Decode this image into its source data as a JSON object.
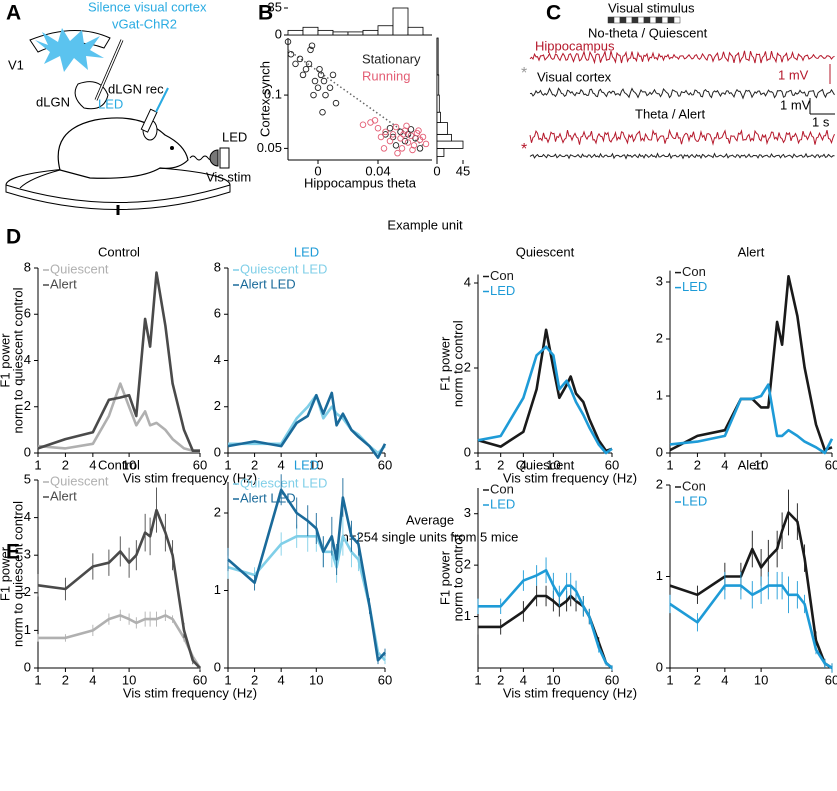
{
  "figure": {
    "panel_letters": [
      "A",
      "B",
      "C",
      "D",
      "E"
    ],
    "a": {
      "title1": "Silence visual cortex",
      "title2": "vGat-ChR2",
      "v1": "V1",
      "dlgn": "dLGN",
      "dlgn_rec": "dLGN rec.",
      "led_probe": "LED",
      "led": "LED",
      "vis_stim": "Vis stim"
    },
    "c": {
      "stimulus": "Visual stimulus",
      "state1": "No-theta / Quiescent",
      "hippocampus": "Hippocampus",
      "cortex": "Visual cortex",
      "scale_red": "1 mV",
      "scale_black": "1 mV",
      "scale_time": "1 s",
      "state2": "Theta / Alert",
      "star": "*"
    },
    "d_heading": "Example unit",
    "e_heading": "Average",
    "e_subheading": "n=254 single units from 5 mice"
  },
  "chart_data": [
    {
      "type": "scatter",
      "xlabel": "Hippocampus theta",
      "ylabel": "Cortex synch",
      "xlim": [
        -0.02,
        0.076
      ],
      "ylim": [
        0.043,
        0.21
      ],
      "log_y": true,
      "xticks": [
        0,
        0.04
      ],
      "yticks": [
        0.05,
        0.1
      ],
      "series": [
        {
          "name": "Stationary",
          "color": "#222222",
          "x": [
            -0.02,
            -0.018,
            -0.015,
            -0.012,
            -0.01,
            -0.008,
            -0.005,
            -0.004,
            -0.002,
            0,
            0.002,
            0.004,
            0.005,
            0.008,
            0.01,
            0.012,
            -0.006,
            -0.003,
            0.001,
            0.003,
            0.045,
            0.05,
            0.055,
            0.058,
            0.06,
            0.062,
            0.065,
            0.052,
            0.048,
            0.068
          ],
          "y": [
            0.2,
            0.17,
            0.15,
            0.16,
            0.13,
            0.14,
            0.18,
            0.19,
            0.12,
            0.11,
            0.13,
            0.12,
            0.1,
            0.11,
            0.13,
            0.09,
            0.15,
            0.1,
            0.14,
            0.08,
            0.06,
            0.058,
            0.062,
            0.055,
            0.06,
            0.064,
            0.057,
            0.052,
            0.065,
            0.05
          ]
        },
        {
          "name": "Running",
          "color": "#e35d74",
          "x": [
            0.03,
            0.035,
            0.04,
            0.042,
            0.045,
            0.048,
            0.05,
            0.052,
            0.055,
            0.056,
            0.058,
            0.06,
            0.062,
            0.064,
            0.066,
            0.068,
            0.07,
            0.072,
            0.038,
            0.044,
            0.053,
            0.059,
            0.063,
            0.067,
            0.057
          ],
          "y": [
            0.068,
            0.07,
            0.065,
            0.058,
            0.062,
            0.055,
            0.06,
            0.066,
            0.057,
            0.05,
            0.063,
            0.054,
            0.059,
            0.052,
            0.061,
            0.056,
            0.058,
            0.053,
            0.072,
            0.05,
            0.047,
            0.067,
            0.049,
            0.063,
            0.06
          ]
        }
      ],
      "fit_line": {
        "x": [
          -0.02,
          0.07
        ],
        "y": [
          0.18,
          0.052
        ]
      }
    },
    {
      "type": "histogram",
      "bins": [
        -0.02,
        -0.01,
        0,
        0.01,
        0.02,
        0.03,
        0.04,
        0.05,
        0.06,
        0.07
      ],
      "counts": [
        6,
        10,
        6,
        4,
        4,
        6,
        12,
        35,
        10
      ],
      "ylim": [
        0,
        35
      ],
      "yticks": [
        0,
        35
      ]
    },
    {
      "type": "histogram",
      "orientation": "horizontal",
      "bins": [
        0.045,
        0.05,
        0.055,
        0.06,
        0.07,
        0.08,
        0.1,
        0.13,
        0.21
      ],
      "counts": [
        12,
        45,
        25,
        18,
        6,
        4,
        3,
        2
      ],
      "xlim": [
        0,
        45
      ],
      "xticks": [
        0,
        45
      ]
    },
    {
      "type": "line",
      "title": "Control",
      "ylabel": [
        "F1 power",
        "norm to quiescent control"
      ],
      "xlabel": "Vis stim frequency (Hz)",
      "log_x": true,
      "x": [
        1,
        2,
        4,
        6,
        8,
        10,
        12,
        15,
        17,
        20,
        25,
        30,
        40,
        50,
        60
      ],
      "xlim": [
        1,
        60
      ],
      "xticks": [
        1,
        2,
        4,
        10,
        60
      ],
      "ylim": [
        0,
        8
      ],
      "yticks": [
        0,
        2,
        4,
        6,
        8
      ],
      "series": [
        {
          "name": "Quiescent",
          "color": "#b0b0b0",
          "values": [
            0.3,
            0.2,
            0.4,
            1.6,
            3.0,
            2.0,
            1.2,
            1.8,
            1.2,
            1.3,
            1.0,
            0.6,
            0.2,
            0.1,
            0.1
          ]
        },
        {
          "name": "Alert",
          "color": "#4a4a4a",
          "values": [
            0.2,
            0.6,
            0.9,
            2.3,
            2.4,
            2.5,
            1.6,
            5.8,
            4.6,
            7.8,
            5.5,
            3.0,
            1.0,
            0.1,
            0.1
          ]
        }
      ]
    },
    {
      "type": "line",
      "title": "LED",
      "title_color": "#1e9bd7",
      "log_x": true,
      "x": [
        1,
        2,
        4,
        6,
        8,
        10,
        12,
        15,
        17,
        20,
        25,
        30,
        40,
        50,
        60
      ],
      "xlim": [
        1,
        60
      ],
      "xticks": [
        1,
        2,
        4,
        10,
        60
      ],
      "ylim": [
        0,
        8
      ],
      "yticks": [
        0,
        2,
        4,
        6,
        8
      ],
      "series": [
        {
          "name": "Quiescent LED",
          "color": "#80cfe8",
          "values": [
            0.4,
            0.4,
            0.4,
            1.5,
            2.0,
            2.5,
            1.5,
            2.0,
            1.7,
            1.5,
            1.0,
            0.8,
            0.3,
            0.0,
            0.3
          ]
        },
        {
          "name": "Alert LED",
          "color": "#1a6a9a",
          "values": [
            0.3,
            0.5,
            0.3,
            1.3,
            1.6,
            2.5,
            1.7,
            2.6,
            1.2,
            1.7,
            1.0,
            0.7,
            0.3,
            -0.2,
            0.4
          ]
        }
      ]
    },
    {
      "type": "line",
      "title": "Quiescent",
      "ylabel": [
        "F1 power",
        "norm to control"
      ],
      "xlabel": "Vis stim frequency (Hz)",
      "log_x": true,
      "x": [
        1,
        2,
        4,
        6,
        8,
        10,
        12,
        15,
        17,
        20,
        25,
        30,
        40,
        50,
        60
      ],
      "xlim": [
        1,
        60
      ],
      "xticks": [
        1,
        2,
        4,
        10,
        60
      ],
      "ylim": [
        0,
        4.2
      ],
      "yticks": [
        0,
        2,
        4
      ],
      "series": [
        {
          "name": "Con",
          "color": "#1a1a1a",
          "values": [
            0.3,
            0.15,
            0.5,
            1.5,
            2.9,
            2.0,
            1.3,
            1.6,
            1.8,
            1.4,
            1.2,
            0.8,
            0.3,
            0.05,
            0.1
          ]
        },
        {
          "name": "LED",
          "color": "#1e9bd7",
          "values": [
            0.3,
            0.4,
            1.3,
            2.3,
            2.5,
            2.3,
            1.5,
            1.7,
            1.5,
            1.2,
            0.9,
            0.6,
            0.2,
            0.0,
            0.1
          ]
        }
      ]
    },
    {
      "type": "line",
      "title": "Alert",
      "log_x": true,
      "x": [
        1,
        2,
        4,
        6,
        8,
        10,
        12,
        15,
        17,
        20,
        25,
        30,
        40,
        50,
        60
      ],
      "xlim": [
        1,
        60
      ],
      "xticks": [
        1,
        2,
        4,
        10,
        60
      ],
      "ylim": [
        0,
        3.2
      ],
      "yticks": [
        0,
        1,
        2,
        3
      ],
      "series": [
        {
          "name": "Con",
          "color": "#1a1a1a",
          "values": [
            0.05,
            0.3,
            0.4,
            0.95,
            0.95,
            0.8,
            0.8,
            2.3,
            1.9,
            3.1,
            2.4,
            1.5,
            0.5,
            0.05,
            0.1
          ]
        },
        {
          "name": "LED",
          "color": "#1e9bd7",
          "values": [
            0.15,
            0.2,
            0.3,
            0.95,
            0.95,
            1.0,
            1.2,
            0.3,
            0.3,
            0.4,
            0.3,
            0.2,
            0.1,
            0.0,
            0.25
          ]
        }
      ]
    },
    {
      "type": "line",
      "title": "Control",
      "ylabel": [
        "F1 power",
        "norm to quiescent control"
      ],
      "xlabel": "Vis stim frequency (Hz)",
      "log_x": true,
      "x": [
        1,
        2,
        4,
        6,
        8,
        10,
        12,
        15,
        17,
        20,
        25,
        30,
        40,
        50,
        60
      ],
      "xlim": [
        1,
        60
      ],
      "xticks": [
        1,
        2,
        4,
        10,
        60
      ],
      "ylim": [
        0,
        5
      ],
      "yticks": [
        0,
        1,
        2,
        3,
        4,
        5
      ],
      "series": [
        {
          "name": "Quiescent",
          "color": "#b0b0b0",
          "values": [
            0.8,
            0.8,
            1.0,
            1.3,
            1.4,
            1.3,
            1.2,
            1.3,
            1.3,
            1.3,
            1.4,
            1.3,
            0.8,
            0.3,
            0.0
          ],
          "errors": [
            0.1,
            0.1,
            0.15,
            0.15,
            0.15,
            0.15,
            0.15,
            0.2,
            0.2,
            0.2,
            0.15,
            0.1,
            0.1,
            0.05,
            0.05
          ]
        },
        {
          "name": "Alert",
          "color": "#4a4a4a",
          "values": [
            2.2,
            2.1,
            2.7,
            2.8,
            3.1,
            2.8,
            3.0,
            3.6,
            3.5,
            4.2,
            3.6,
            3.0,
            1.0,
            0.2,
            0.0
          ],
          "errors": [
            0.3,
            0.3,
            0.35,
            0.35,
            0.4,
            0.4,
            0.4,
            0.5,
            0.5,
            0.6,
            0.5,
            0.4,
            0.2,
            0.1,
            0.05
          ]
        }
      ]
    },
    {
      "type": "line",
      "title": "LED",
      "title_color": "#1e9bd7",
      "log_x": true,
      "x": [
        1,
        2,
        4,
        6,
        8,
        10,
        12,
        15,
        17,
        20,
        25,
        30,
        40,
        50,
        60
      ],
      "xlim": [
        1,
        60
      ],
      "xticks": [
        1,
        2,
        4,
        10,
        60
      ],
      "ylim": [
        0,
        2.4
      ],
      "yticks": [
        0,
        1,
        2
      ],
      "series": [
        {
          "name": "Quiescent LED",
          "color": "#80cfe8",
          "values": [
            1.3,
            1.2,
            1.6,
            1.7,
            1.7,
            1.7,
            1.5,
            1.5,
            1.3,
            1.7,
            1.5,
            1.4,
            0.8,
            0.2,
            0.1
          ],
          "errors": [
            0.15,
            0.1,
            0.15,
            0.15,
            0.2,
            0.2,
            0.2,
            0.2,
            0.2,
            0.25,
            0.2,
            0.15,
            0.1,
            0.05,
            0.05
          ]
        },
        {
          "name": "Alert LED",
          "color": "#1a6a9a",
          "values": [
            1.4,
            1.1,
            2.3,
            2.0,
            1.9,
            1.8,
            1.5,
            1.7,
            1.4,
            2.2,
            1.7,
            1.6,
            0.8,
            0.1,
            0.2
          ],
          "errors": [
            0.15,
            0.1,
            0.2,
            0.2,
            0.2,
            0.2,
            0.2,
            0.25,
            0.2,
            0.25,
            0.2,
            0.15,
            0.1,
            0.05,
            0.05
          ]
        }
      ]
    },
    {
      "type": "line",
      "title": "Quiescent",
      "ylabel": [
        "F1 power",
        "norm to control"
      ],
      "xlabel": "Vis stim frequency (Hz)",
      "log_x": true,
      "x": [
        1,
        2,
        4,
        6,
        8,
        10,
        12,
        15,
        17,
        20,
        25,
        30,
        40,
        50,
        60
      ],
      "xlim": [
        1,
        60
      ],
      "xticks": [
        1,
        2,
        4,
        10,
        60
      ],
      "ylim": [
        0,
        3.5
      ],
      "yticks": [
        1,
        2,
        3
      ],
      "series": [
        {
          "name": "Con",
          "color": "#1a1a1a",
          "values": [
            0.8,
            0.8,
            1.1,
            1.4,
            1.4,
            1.3,
            1.2,
            1.3,
            1.4,
            1.3,
            1.2,
            1.0,
            0.5,
            0.1,
            0.0
          ],
          "errors": [
            0.15,
            0.15,
            0.2,
            0.2,
            0.2,
            0.2,
            0.2,
            0.2,
            0.2,
            0.2,
            0.2,
            0.15,
            0.1,
            0.05,
            0.05
          ]
        },
        {
          "name": "LED",
          "color": "#1e9bd7",
          "values": [
            1.2,
            1.2,
            1.7,
            1.8,
            1.9,
            1.6,
            1.4,
            1.6,
            1.6,
            1.5,
            1.2,
            1.0,
            0.4,
            0.1,
            0.0
          ],
          "errors": [
            0.15,
            0.15,
            0.2,
            0.2,
            0.25,
            0.25,
            0.2,
            0.25,
            0.25,
            0.2,
            0.2,
            0.15,
            0.1,
            0.05,
            0.05
          ]
        }
      ]
    },
    {
      "type": "line",
      "title": "Alert",
      "log_x": true,
      "x": [
        1,
        2,
        4,
        6,
        8,
        10,
        12,
        15,
        17,
        20,
        25,
        30,
        40,
        50,
        60
      ],
      "xlim": [
        1,
        60
      ],
      "xticks": [
        1,
        2,
        4,
        10,
        60
      ],
      "ylim": [
        0,
        2
      ],
      "yticks": [
        0,
        1,
        2
      ],
      "series": [
        {
          "name": "Con",
          "color": "#1a1a1a",
          "values": [
            0.9,
            0.8,
            1.0,
            1.0,
            1.3,
            1.1,
            1.2,
            1.3,
            1.5,
            1.7,
            1.6,
            1.2,
            0.3,
            0.05,
            0.0
          ],
          "errors": [
            0.1,
            0.1,
            0.15,
            0.15,
            0.2,
            0.2,
            0.2,
            0.2,
            0.2,
            0.25,
            0.2,
            0.15,
            0.1,
            0.05,
            0.05
          ]
        },
        {
          "name": "LED",
          "color": "#1e9bd7",
          "values": [
            0.7,
            0.5,
            0.9,
            0.9,
            0.8,
            0.85,
            0.9,
            0.9,
            0.9,
            0.8,
            0.8,
            0.7,
            0.2,
            0.05,
            0.0
          ],
          "errors": [
            0.1,
            0.1,
            0.15,
            0.15,
            0.15,
            0.15,
            0.15,
            0.15,
            0.15,
            0.2,
            0.15,
            0.1,
            0.05,
            0.05,
            0.05
          ]
        }
      ]
    }
  ]
}
